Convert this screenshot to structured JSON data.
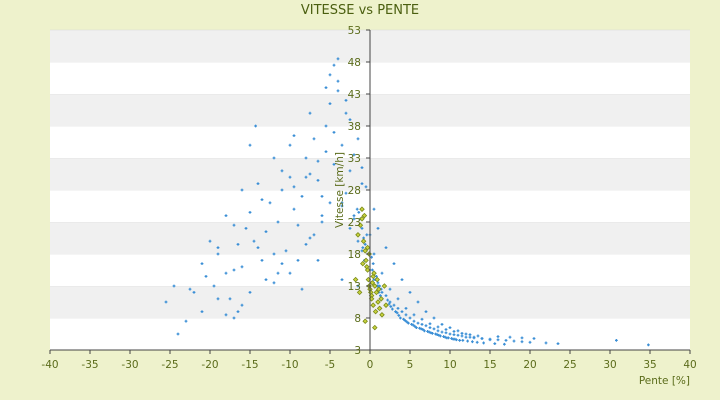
{
  "chart_data": {
    "type": "scatter",
    "title": "VITESSE vs PENTE",
    "xlabel": "Pente [%]",
    "ylabel": "Vitesse [km/h]",
    "xlim": [
      -40,
      40
    ],
    "ylim": [
      3,
      53
    ],
    "x_ticks": [
      "-40",
      "-35",
      "-30",
      "-25",
      "-20",
      "-15",
      "-10",
      "-5",
      "0",
      "5",
      "10",
      "15",
      "20",
      "25",
      "30",
      "35",
      "40"
    ],
    "y_ticks": [
      "3",
      "8",
      "13",
      "18",
      "23",
      "28",
      "33",
      "38",
      "43",
      "48",
      "53"
    ],
    "grid": "alternating horizontal bands",
    "series": [
      {
        "color": "#3b8fd6",
        "x": [
          -24.0,
          -23.0,
          -25.5,
          -22.0,
          -21.0,
          -20.5,
          -19.5,
          -19.0,
          -18.0,
          -17.5,
          -17.0,
          -16.5,
          -16.0,
          -15.5,
          -15.0,
          -14.5,
          -14.0,
          -13.5,
          -13.0,
          -12.5,
          -12.0,
          -11.5,
          -11.0,
          -10.5,
          -10.0,
          -9.5,
          -9.0,
          -8.5,
          -8.0,
          -7.5,
          -7.0,
          -6.5,
          -6.0,
          -5.5,
          -5.0,
          -4.5,
          -4.0,
          -3.5,
          -3.0,
          -2.5,
          -2.0,
          -1.5,
          -1.0,
          -0.5,
          0.0,
          0.5,
          1.0,
          1.5,
          2.0,
          2.5,
          3.0,
          3.5,
          4.0,
          4.5,
          5.0,
          5.5,
          6.0,
          6.5,
          7.0,
          7.5,
          8.0,
          8.5,
          9.0,
          9.5,
          10.0,
          10.5,
          11.0,
          11.5,
          12.0,
          12.5,
          13.0,
          14.0,
          15.0,
          16.0,
          17.0,
          18.0,
          19.0,
          20.0,
          22.0,
          23.5,
          30.8,
          34.8,
          -14.3,
          -15.0,
          -5.0,
          -4.5,
          -4.0,
          -3.0,
          -2.5,
          -1.5,
          -1.0,
          -0.5,
          0.5,
          1.0,
          2.0,
          3.0,
          4.0,
          5.0,
          6.0,
          7.0,
          8.0,
          9.0,
          10.0,
          11.0,
          12.0,
          13.0,
          14.0,
          15.0,
          -20.0,
          -18.0,
          -16.0,
          -12.0,
          -10.0,
          -8.0,
          -6.0,
          -3.5,
          -2.0,
          0.0,
          -22.5,
          -21.0,
          -19.0,
          -17.0,
          -13.5,
          -11.0,
          -9.5,
          -7.5,
          -5.5,
          -4.0,
          -24.5,
          -16.5,
          -11.5,
          -8.5,
          -6.5,
          -3.5,
          -1.5,
          -0.5,
          0.5,
          1.5,
          2.5,
          3.5,
          4.5,
          5.5,
          6.5,
          7.5,
          8.5,
          9.5,
          10.5,
          11.5,
          12.5,
          13.5,
          16.0,
          17.5,
          19.0,
          20.5,
          -1.0,
          -0.8,
          -0.6,
          -0.4,
          -0.2,
          0.2,
          0.4,
          0.6,
          0.8,
          1.0,
          1.2,
          1.4,
          -1.2,
          -1.4,
          -1.6,
          -0.9,
          -0.7,
          -0.3,
          0.3,
          0.7,
          0.9,
          1.1,
          1.3,
          1.5,
          2.2,
          2.4,
          2.6,
          2.8,
          3.2,
          3.4,
          3.6,
          3.8,
          4.2,
          4.4,
          4.6,
          4.8,
          5.2,
          5.4,
          5.6,
          5.8,
          6.2,
          6.4,
          6.6,
          6.8,
          7.2,
          7.4,
          7.6,
          7.8,
          8.2,
          8.4,
          8.6,
          8.8,
          9.2,
          9.4,
          9.6,
          9.8,
          10.2,
          10.4,
          10.6,
          10.8,
          11.2,
          11.6,
          12.2,
          12.8,
          13.4,
          14.2,
          15.6,
          16.8,
          -9.0,
          -8.0,
          -7.0,
          -6.0,
          -5.0,
          -10.0,
          -11.0,
          -12.0,
          -13.0,
          -14.0,
          -15.0,
          -16.0,
          -17.0,
          -18.0,
          -19.0,
          -9.5,
          -7.5,
          -6.5,
          -5.5,
          -4.5,
          -3.0,
          -2.0,
          -1.0,
          -3.5,
          -2.5,
          -1.5,
          -0.5
        ],
        "y": [
          5.5,
          7.5,
          10.5,
          12.0,
          9.0,
          14.5,
          13.0,
          18.0,
          15.0,
          11.0,
          8.0,
          19.5,
          16.0,
          22.0,
          24.5,
          20.0,
          29.0,
          17.0,
          21.5,
          26.0,
          13.5,
          23.0,
          28.0,
          18.5,
          30.0,
          25.0,
          22.5,
          27.0,
          33.0,
          20.5,
          36.0,
          29.5,
          24.0,
          38.0,
          41.5,
          32.0,
          45.0,
          35.0,
          27.5,
          31.0,
          24.0,
          21.0,
          18.5,
          17.0,
          15.5,
          14.0,
          13.0,
          12.0,
          11.5,
          10.5,
          10.0,
          9.5,
          9.0,
          8.5,
          8.0,
          7.5,
          7.2,
          7.0,
          6.8,
          6.5,
          6.3,
          6.0,
          5.8,
          5.7,
          5.5,
          5.4,
          5.3,
          5.2,
          5.0,
          5.0,
          4.9,
          4.8,
          4.7,
          4.6,
          4.5,
          4.4,
          4.3,
          4.2,
          4.1,
          4.0,
          4.5,
          3.8,
          38.0,
          35.0,
          46.0,
          47.5,
          43.5,
          42.0,
          39.0,
          36.0,
          31.5,
          28.5,
          25.0,
          22.0,
          19.0,
          16.5,
          14.0,
          12.0,
          10.5,
          9.0,
          8.0,
          7.0,
          6.5,
          6.0,
          5.5,
          5.0,
          4.8,
          4.6,
          20.0,
          24.0,
          28.0,
          33.0,
          35.0,
          30.0,
          27.0,
          25.5,
          23.5,
          21.0,
          12.5,
          16.5,
          19.0,
          22.5,
          26.5,
          31.0,
          36.5,
          40.0,
          44.0,
          48.5,
          13.0,
          9.0,
          15.0,
          12.5,
          17.0,
          14.0,
          13.0,
          16.0,
          18.0,
          15.0,
          12.5,
          11.0,
          9.5,
          8.5,
          7.8,
          7.1,
          6.6,
          6.2,
          5.9,
          5.6,
          5.4,
          5.2,
          5.1,
          5.0,
          4.9,
          4.8,
          22.0,
          20.5,
          19.5,
          21.0,
          18.0,
          17.5,
          16.5,
          15.0,
          14.5,
          13.5,
          13.0,
          12.5,
          23.5,
          24.5,
          25.0,
          19.0,
          17.0,
          16.0,
          15.5,
          14.0,
          13.0,
          12.0,
          11.5,
          11.0,
          10.8,
          10.2,
          9.8,
          9.4,
          9.0,
          8.8,
          8.4,
          8.0,
          7.8,
          7.6,
          7.4,
          7.2,
          7.0,
          6.9,
          6.7,
          6.5,
          6.4,
          6.3,
          6.2,
          6.0,
          5.9,
          5.8,
          5.7,
          5.6,
          5.5,
          5.4,
          5.3,
          5.2,
          5.1,
          5.0,
          4.9,
          4.9,
          4.8,
          4.7,
          4.7,
          4.6,
          4.5,
          4.5,
          4.4,
          4.3,
          4.2,
          4.1,
          4.0,
          3.9,
          17.0,
          19.5,
          21.0,
          23.0,
          26.0,
          15.0,
          16.5,
          18.0,
          14.0,
          19.0,
          12.0,
          10.0,
          15.5,
          8.5,
          11.0,
          28.5,
          30.5,
          32.5,
          34.0,
          37.0,
          40.0,
          33.5,
          29.0,
          26.0,
          22.0,
          20.0,
          18.5
        ]
      },
      {
        "color": "#7a8a1a",
        "x": [
          -1.5,
          -1.2,
          -1.0,
          -0.8,
          -0.6,
          -0.5,
          -0.4,
          -0.3,
          -0.2,
          -0.1,
          0.0,
          0.1,
          0.2,
          0.3,
          0.4,
          0.5,
          0.6,
          0.8,
          1.0,
          1.2,
          1.5,
          -1.0,
          -0.7,
          -0.3,
          0.2,
          0.7,
          -0.9,
          -0.1,
          0.4,
          1.1,
          -1.8,
          -1.3,
          0.9,
          1.4,
          1.8,
          2.0,
          -0.6,
          0.6
        ],
        "y": [
          21.0,
          22.5,
          23.5,
          20.0,
          18.5,
          17.0,
          16.0,
          15.5,
          14.0,
          13.0,
          12.5,
          12.0,
          11.5,
          13.5,
          14.5,
          15.0,
          13.0,
          12.0,
          10.5,
          9.5,
          8.5,
          25.0,
          24.0,
          19.0,
          11.0,
          9.0,
          16.5,
          18.0,
          10.0,
          12.5,
          14.0,
          12.0,
          14.0,
          11.0,
          13.0,
          10.0,
          7.5,
          6.5
        ]
      }
    ]
  }
}
